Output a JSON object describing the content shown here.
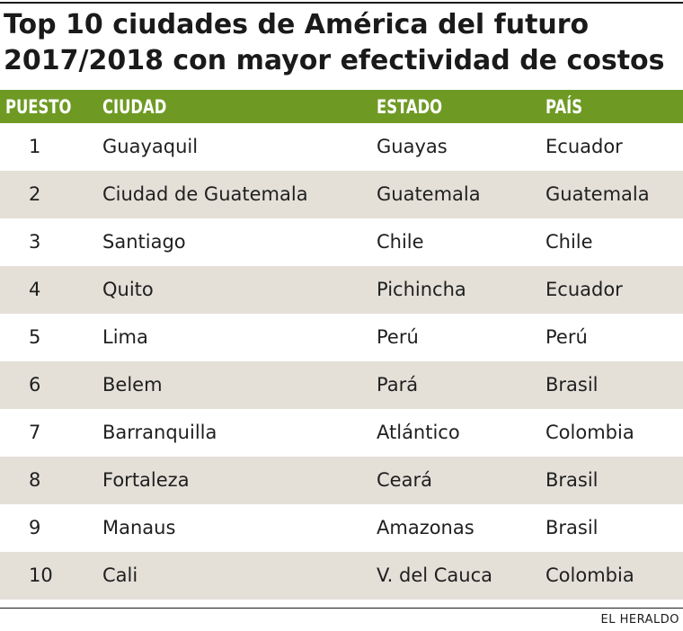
{
  "title_line1": "Top 10 ciudades de América del futuro",
  "title_line2": "2017/2018 con mayor efectividad de costos",
  "source": "EL HERALDO",
  "colors": {
    "header_bg": "#6e9a24",
    "row_alt_bg": "#e4e0d8"
  },
  "chart_data": {
    "type": "table",
    "title": "Top 10 ciudades de América del futuro 2017/2018 con mayor efectividad de costos",
    "columns": [
      "PUESTO",
      "CIUDAD",
      "ESTADO",
      "PAÍS"
    ],
    "rows": [
      [
        "1",
        "Guayaquil",
        "Guayas",
        "Ecuador"
      ],
      [
        "2",
        "Ciudad de Guatemala",
        "Guatemala",
        "Guatemala"
      ],
      [
        "3",
        "Santiago",
        "Chile",
        "Chile"
      ],
      [
        "4",
        "Quito",
        "Pichincha",
        "Ecuador"
      ],
      [
        "5",
        "Lima",
        "Perú",
        "Perú"
      ],
      [
        "6",
        "Belem",
        "Pará",
        "Brasil"
      ],
      [
        "7",
        "Barranquilla",
        "Atlántico",
        "Colombia"
      ],
      [
        "8",
        "Fortaleza",
        "Ceará",
        "Brasil"
      ],
      [
        "9",
        "Manaus",
        "Amazonas",
        "Brasil"
      ],
      [
        "10",
        "Cali",
        "V. del Cauca",
        "Colombia"
      ]
    ]
  }
}
